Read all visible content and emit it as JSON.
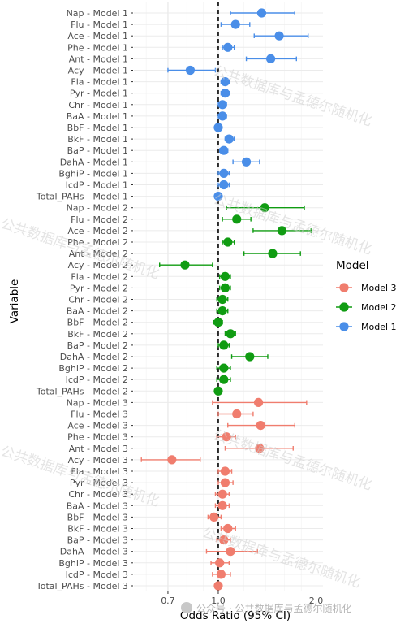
{
  "chart_data": {
    "type": "forest",
    "title": "",
    "xlabel": "Odds Ratio (95% CI)",
    "ylabel": "Variable",
    "x_scale": "log",
    "xlim": [
      0.55,
      2.1
    ],
    "x_ticks": [
      0.7,
      1.0,
      2.0
    ],
    "x_tick_labels": [
      "0.7",
      "1.0",
      "2.0"
    ],
    "reference_line": 1.0,
    "grid": true,
    "legend": {
      "title": "Model",
      "position": "right",
      "entries": [
        "Model 3",
        "Model 2",
        "Model 1"
      ]
    },
    "colors": {
      "Model 1": "#4a8ee8",
      "Model 2": "#109c12",
      "Model 3": "#f07d6e"
    },
    "rows": [
      {
        "label": "Nap - Model 1",
        "model": "Model 1",
        "or": 1.36,
        "lo": 1.09,
        "hi": 1.72
      },
      {
        "label": "Flu - Model 1",
        "model": "Model 1",
        "or": 1.13,
        "lo": 1.02,
        "hi": 1.25
      },
      {
        "label": "Ace - Model 1",
        "model": "Model 1",
        "or": 1.54,
        "lo": 1.29,
        "hi": 1.89
      },
      {
        "label": "Phe - Model 1",
        "model": "Model 1",
        "or": 1.07,
        "lo": 1.03,
        "hi": 1.12
      },
      {
        "label": "Ant - Model 1",
        "model": "Model 1",
        "or": 1.45,
        "lo": 1.22,
        "hi": 1.74
      },
      {
        "label": "Acy - Model 1",
        "model": "Model 1",
        "or": 0.82,
        "lo": 0.7,
        "hi": 0.98
      },
      {
        "label": "Fla - Model 1",
        "model": "Model 1",
        "or": 1.05,
        "lo": 1.02,
        "hi": 1.08
      },
      {
        "label": "Pyr - Model 1",
        "model": "Model 1",
        "or": 1.05,
        "lo": 1.02,
        "hi": 1.08
      },
      {
        "label": "Chr - Model 1",
        "model": "Model 1",
        "or": 1.03,
        "lo": 1.0,
        "hi": 1.06
      },
      {
        "label": "BaA - Model 1",
        "model": "Model 1",
        "or": 1.03,
        "lo": 1.0,
        "hi": 1.06
      },
      {
        "label": "BbF - Model 1",
        "model": "Model 1",
        "or": 1.0,
        "lo": 0.98,
        "hi": 1.02
      },
      {
        "label": "BkF - Model 1",
        "model": "Model 1",
        "or": 1.08,
        "lo": 1.05,
        "hi": 1.12
      },
      {
        "label": "BaP - Model 1",
        "model": "Model 1",
        "or": 1.04,
        "lo": 1.01,
        "hi": 1.07
      },
      {
        "label": "DahA - Model 1",
        "model": "Model 1",
        "or": 1.22,
        "lo": 1.11,
        "hi": 1.34
      },
      {
        "label": "BghiP - Model 1",
        "model": "Model 1",
        "or": 1.04,
        "lo": 1.0,
        "hi": 1.08
      },
      {
        "label": "IcdP - Model 1",
        "model": "Model 1",
        "or": 1.04,
        "lo": 1.0,
        "hi": 1.08
      },
      {
        "label": "Total_PAHs - Model 1",
        "model": "Model 1",
        "or": 1.0,
        "lo": 0.99,
        "hi": 1.01
      },
      {
        "label": "Nap - Model 2",
        "model": "Model 2",
        "or": 1.39,
        "lo": 1.06,
        "hi": 1.84
      },
      {
        "label": "Flu - Model 2",
        "model": "Model 2",
        "or": 1.14,
        "lo": 1.03,
        "hi": 1.26
      },
      {
        "label": "Ace - Model 2",
        "model": "Model 2",
        "or": 1.57,
        "lo": 1.28,
        "hi": 1.93
      },
      {
        "label": "Phe - Model 2",
        "model": "Model 2",
        "or": 1.07,
        "lo": 1.03,
        "hi": 1.12
      },
      {
        "label": "Ant - Model 2",
        "model": "Model 2",
        "or": 1.47,
        "lo": 1.2,
        "hi": 1.79
      },
      {
        "label": "Acy - Model 2",
        "model": "Model 2",
        "or": 0.79,
        "lo": 0.66,
        "hi": 0.96
      },
      {
        "label": "Fla - Model 2",
        "model": "Model 2",
        "or": 1.05,
        "lo": 1.01,
        "hi": 1.09
      },
      {
        "label": "Pyr - Model 2",
        "model": "Model 2",
        "or": 1.05,
        "lo": 1.01,
        "hi": 1.09
      },
      {
        "label": "Chr - Model 2",
        "model": "Model 2",
        "or": 1.03,
        "lo": 0.99,
        "hi": 1.07
      },
      {
        "label": "BaA - Model 2",
        "model": "Model 2",
        "or": 1.03,
        "lo": 0.99,
        "hi": 1.07
      },
      {
        "label": "BbF - Model 2",
        "model": "Model 2",
        "or": 1.0,
        "lo": 0.97,
        "hi": 1.03
      },
      {
        "label": "BkF - Model 2",
        "model": "Model 2",
        "or": 1.09,
        "lo": 1.05,
        "hi": 1.13
      },
      {
        "label": "BaP - Model 2",
        "model": "Model 2",
        "or": 1.04,
        "lo": 1.0,
        "hi": 1.08
      },
      {
        "label": "DahA - Model 2",
        "model": "Model 2",
        "or": 1.25,
        "lo": 1.1,
        "hi": 1.42
      },
      {
        "label": "BghiP - Model 2",
        "model": "Model 2",
        "or": 1.04,
        "lo": 0.99,
        "hi": 1.09
      },
      {
        "label": "IcdP - Model 2",
        "model": "Model 2",
        "or": 1.04,
        "lo": 0.99,
        "hi": 1.09
      },
      {
        "label": "Total_PAHs - Model 2",
        "model": "Model 2",
        "or": 1.0,
        "lo": 0.99,
        "hi": 1.01
      },
      {
        "label": "Nap - Model 3",
        "model": "Model 3",
        "or": 1.33,
        "lo": 0.96,
        "hi": 1.87
      },
      {
        "label": "Flu - Model 3",
        "model": "Model 3",
        "or": 1.14,
        "lo": 1.0,
        "hi": 1.28
      },
      {
        "label": "Ace - Model 3",
        "model": "Model 3",
        "or": 1.35,
        "lo": 1.07,
        "hi": 1.72
      },
      {
        "label": "Phe - Model 3",
        "model": "Model 3",
        "or": 1.06,
        "lo": 0.99,
        "hi": 1.13
      },
      {
        "label": "Ant - Model 3",
        "model": "Model 3",
        "or": 1.34,
        "lo": 1.05,
        "hi": 1.7
      },
      {
        "label": "Acy - Model 3",
        "model": "Model 3",
        "or": 0.72,
        "lo": 0.58,
        "hi": 0.88
      },
      {
        "label": "Fla - Model 3",
        "model": "Model 3",
        "or": 1.05,
        "lo": 1.0,
        "hi": 1.1
      },
      {
        "label": "Pyr - Model 3",
        "model": "Model 3",
        "or": 1.05,
        "lo": 1.0,
        "hi": 1.11
      },
      {
        "label": "Chr - Model 3",
        "model": "Model 3",
        "or": 1.03,
        "lo": 0.98,
        "hi": 1.08
      },
      {
        "label": "BaA - Model 3",
        "model": "Model 3",
        "or": 1.03,
        "lo": 0.98,
        "hi": 1.08
      },
      {
        "label": "BbF - Model 3",
        "model": "Model 3",
        "or": 0.97,
        "lo": 0.93,
        "hi": 1.02
      },
      {
        "label": "BkF - Model 3",
        "model": "Model 3",
        "or": 1.07,
        "lo": 1.02,
        "hi": 1.13
      },
      {
        "label": "BaP - Model 3",
        "model": "Model 3",
        "or": 1.04,
        "lo": 0.99,
        "hi": 1.09
      },
      {
        "label": "DahA - Model 3",
        "model": "Model 3",
        "or": 1.09,
        "lo": 0.92,
        "hi": 1.32
      },
      {
        "label": "BghiP - Model 3",
        "model": "Model 3",
        "or": 1.01,
        "lo": 0.95,
        "hi": 1.08
      },
      {
        "label": "IcdP - Model 3",
        "model": "Model 3",
        "or": 1.02,
        "lo": 0.96,
        "hi": 1.09
      },
      {
        "label": "Total_PAHs - Model 3",
        "model": "Model 3",
        "or": 1.0,
        "lo": 0.98,
        "hi": 1.02
      }
    ]
  },
  "watermarks": {
    "text": "公共数据库与孟德尔随机化",
    "footer": "公众号 · 公共数据库与孟德尔随机化"
  }
}
